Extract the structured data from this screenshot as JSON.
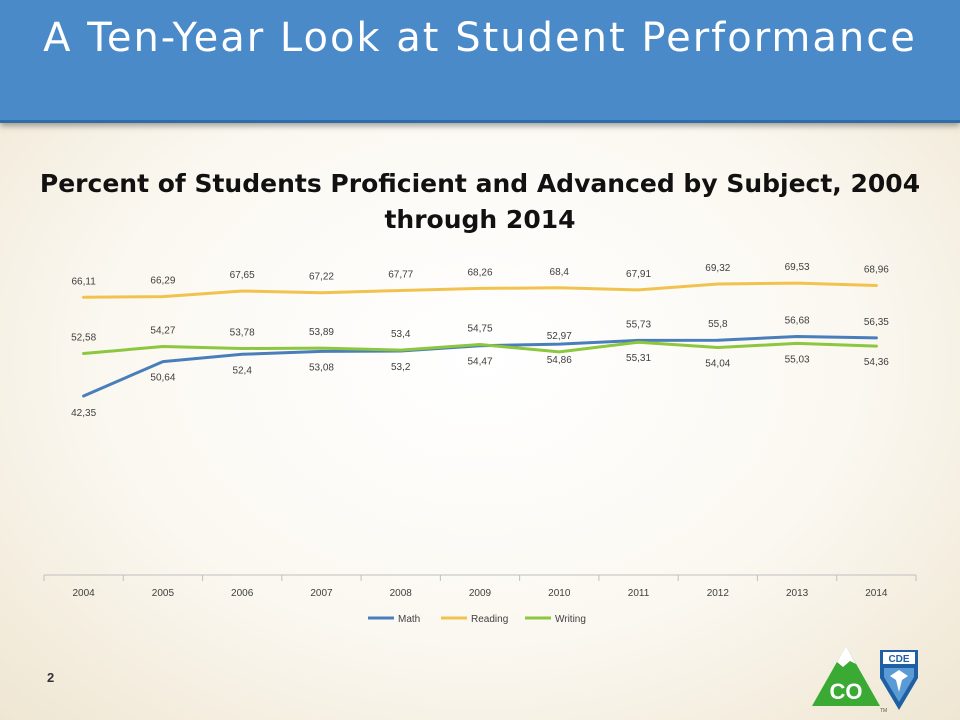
{
  "slide": {
    "title": "A Ten-Year Look at Student Performance",
    "page_number": "2",
    "logo": {
      "co_text": "CO",
      "cde_text": "CDE",
      "tm_text": "TM"
    }
  },
  "chart_data": {
    "type": "line",
    "title": "Percent of Students Proficient and Advanced by Subject, 2004 through 2014",
    "xlabel": "",
    "ylabel": "",
    "categories": [
      "2004",
      "2005",
      "2006",
      "2007",
      "2008",
      "2009",
      "2010",
      "2011",
      "2012",
      "2013",
      "2014"
    ],
    "series": [
      {
        "name": "Math",
        "color": "#4a7ebb",
        "values": [
          42.35,
          50.64,
          52.4,
          53.08,
          53.2,
          54.47,
          54.86,
          55.73,
          55.8,
          56.68,
          56.35
        ],
        "labels": [
          "42,35",
          "50,64",
          "52,4",
          "53,08",
          "53,2",
          "54,47",
          "54,86",
          "55,73",
          "55,8",
          "56,68",
          "56,35"
        ]
      },
      {
        "name": "Reading",
        "color": "#f2c24f",
        "values": [
          66.11,
          66.29,
          67.65,
          67.22,
          67.77,
          68.26,
          68.4,
          67.91,
          69.32,
          69.53,
          68.96
        ],
        "labels": [
          "66,11",
          "66,29",
          "67,65",
          "67,22",
          "67,77",
          "68,26",
          "68,4",
          "67,91",
          "69,32",
          "69,53",
          "68,96"
        ]
      },
      {
        "name": "Writing",
        "color": "#8dc63f",
        "values": [
          52.58,
          54.27,
          53.78,
          53.89,
          53.4,
          54.75,
          52.97,
          55.31,
          54.04,
          55.03,
          54.36
        ],
        "labels": [
          "52,58",
          "54,27",
          "53,78",
          "53,89",
          "53,4",
          "54,75",
          "52,97",
          "55,31",
          "54,04",
          "55,03",
          "54,36"
        ]
      }
    ],
    "grid": false,
    "legend_position": "bottom",
    "data_labels": true
  }
}
